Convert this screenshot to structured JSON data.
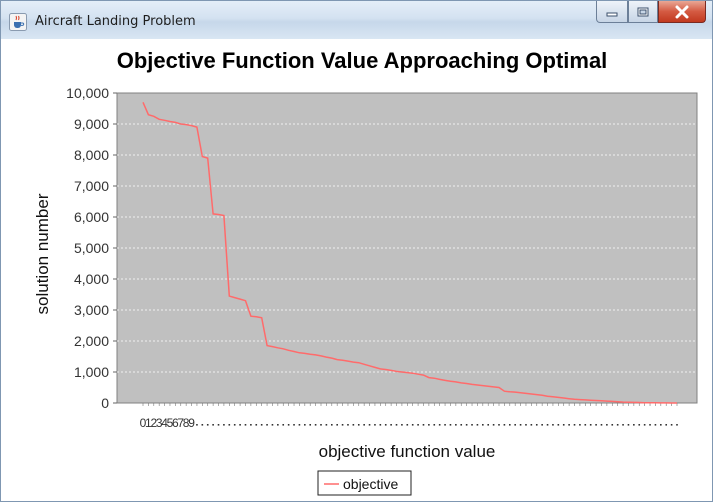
{
  "window": {
    "title": "Aircraft Landing Problem",
    "icon": "java-cup-icon",
    "controls": [
      "minimize-icon",
      "maximize-icon",
      "close-icon"
    ]
  },
  "chart_data": {
    "type": "line",
    "title": "Objective Function Value Approaching Optimal",
    "xlabel": "objective function value",
    "ylabel": "solution number",
    "ylim": [
      0,
      10000
    ],
    "yticks": [
      0,
      1000,
      2000,
      3000,
      4000,
      5000,
      6000,
      7000,
      8000,
      9000,
      10000
    ],
    "ytick_labels": [
      "0",
      "1,000",
      "2,000",
      "3,000",
      "4,000",
      "5,000",
      "6,000",
      "7,000",
      "8,000",
      "9,000",
      "10,000"
    ],
    "x_tick_labels": [
      "0",
      "1",
      "2",
      "3",
      "4",
      "5",
      "6",
      "7",
      "8",
      "9"
    ],
    "x_count": 100,
    "grid": true,
    "plot_background": "#c0c0c0",
    "legend_position": "bottom",
    "series": [
      {
        "name": "objective",
        "color": "#ff6b6b",
        "values": [
          9700,
          9300,
          9250,
          9150,
          9120,
          9080,
          9050,
          9000,
          8980,
          8950,
          8900,
          7950,
          7900,
          6100,
          6080,
          6050,
          3450,
          3400,
          3350,
          3300,
          2800,
          2780,
          2750,
          1850,
          1820,
          1780,
          1750,
          1700,
          1660,
          1620,
          1600,
          1570,
          1550,
          1520,
          1480,
          1450,
          1400,
          1380,
          1350,
          1320,
          1300,
          1250,
          1200,
          1150,
          1100,
          1080,
          1050,
          1020,
          1000,
          980,
          960,
          930,
          900,
          820,
          800,
          760,
          730,
          700,
          680,
          650,
          630,
          600,
          580,
          560,
          540,
          520,
          500,
          380,
          360,
          350,
          330,
          310,
          290,
          270,
          250,
          220,
          200,
          180,
          160,
          140,
          120,
          110,
          100,
          90,
          80,
          70,
          60,
          50,
          40,
          30,
          25,
          20,
          15,
          10,
          8,
          6,
          4,
          2,
          1,
          0
        ]
      }
    ]
  }
}
